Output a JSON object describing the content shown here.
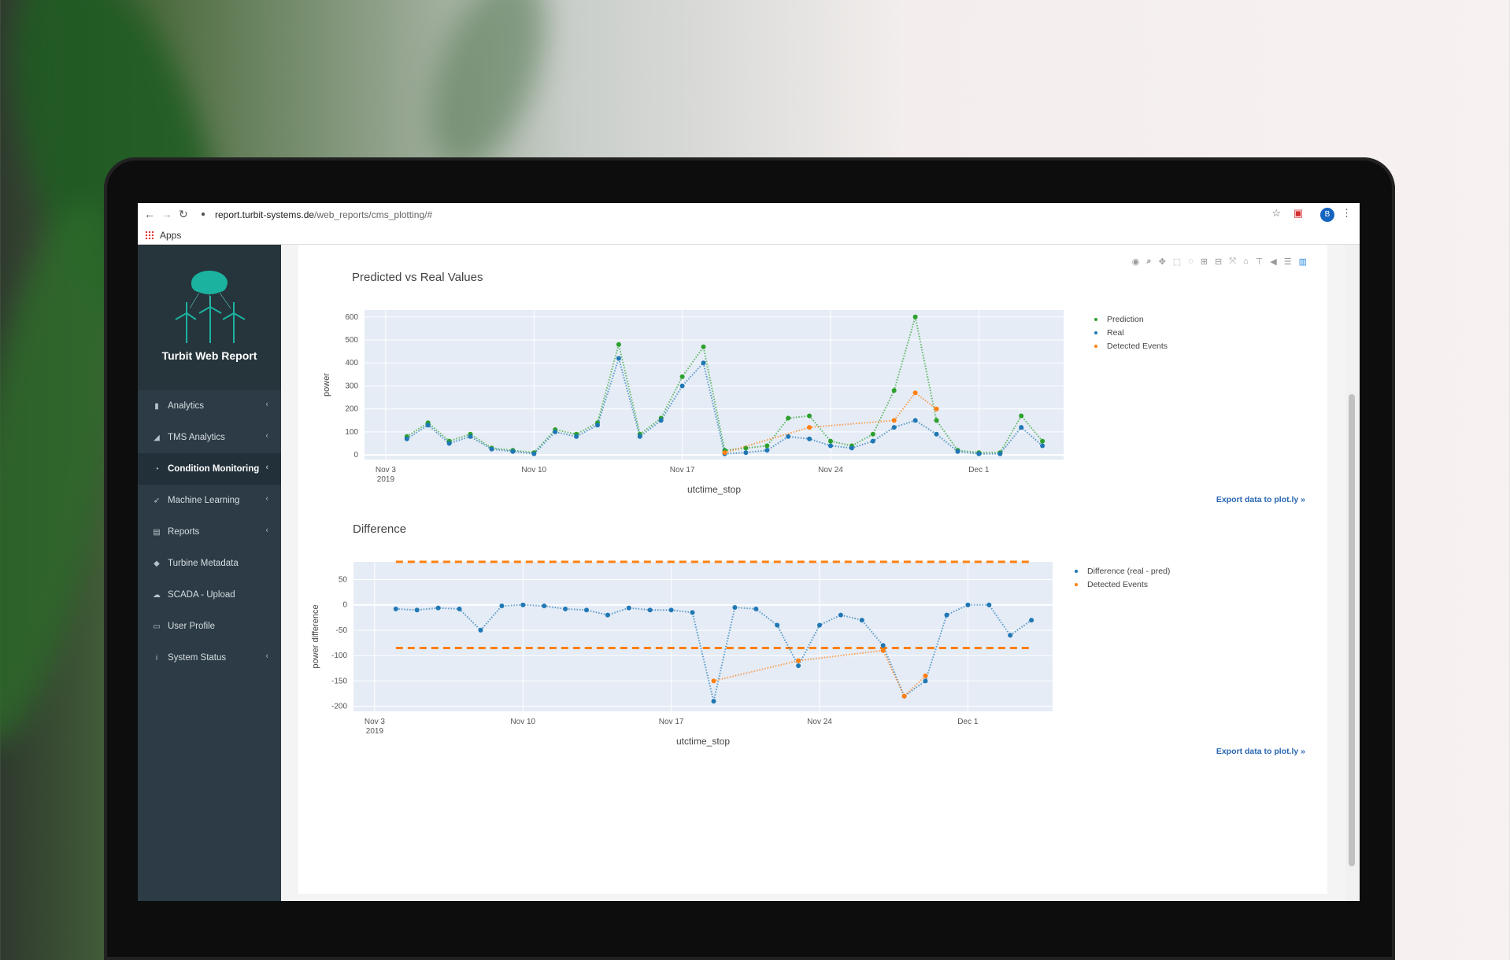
{
  "browser": {
    "url_host": "report.turbit-systems.de",
    "url_path": "/web_reports/cms_plotting/#",
    "apps_label": "Apps",
    "avatar_letter": "B"
  },
  "sidebar": {
    "brand_title": "Turbit Web Report",
    "items": [
      {
        "label": "Analytics",
        "icon": "bar-chart-icon",
        "glyph": "▮",
        "has_chevron": true,
        "active": false
      },
      {
        "label": "TMS Analytics",
        "icon": "area-chart-icon",
        "glyph": "◢",
        "has_chevron": true,
        "active": false
      },
      {
        "label": "Condition Monitoring",
        "icon": "dashboard-icon",
        "glyph": "◔",
        "has_chevron": true,
        "active": true
      },
      {
        "label": "Machine Learning",
        "icon": "rocket-icon",
        "glyph": "➶",
        "has_chevron": true,
        "active": false
      },
      {
        "label": "Reports",
        "icon": "file-icon",
        "glyph": "▤",
        "has_chevron": true,
        "active": false
      },
      {
        "label": "Turbine Metadata",
        "icon": "tags-icon",
        "glyph": "◆",
        "has_chevron": false,
        "active": false
      },
      {
        "label": "SCADA - Upload",
        "icon": "cloud-upload-icon",
        "glyph": "☁",
        "has_chevron": false,
        "active": false
      },
      {
        "label": "User Profile",
        "icon": "id-card-icon",
        "glyph": "▭",
        "has_chevron": false,
        "active": false
      },
      {
        "label": "System Status",
        "icon": "info-icon",
        "glyph": "i",
        "has_chevron": true,
        "active": false
      }
    ]
  },
  "modebar": {
    "icons": [
      "camera-icon",
      "zoom-icon",
      "pan-icon",
      "box-select-icon",
      "lasso-icon",
      "zoom-in-icon",
      "zoom-out-icon",
      "autoscale-icon",
      "reset-axes-icon",
      "spike-lines-icon",
      "hover-closest-icon",
      "hover-compare-icon",
      "plotly-logo-icon"
    ]
  },
  "colors": {
    "prediction": "#2ca02c",
    "real": "#1f77b4",
    "events": "#ff7f0e",
    "plot_bg": "#e5ecf6",
    "sidebar": "#2c3b45"
  },
  "chart_data": [
    {
      "type": "scatter",
      "title": "Predicted vs Real Values",
      "xlabel": "utctime_stop",
      "ylabel": "power",
      "x_ticks": [
        "Nov 3\n2019",
        "Nov 10",
        "Nov 17",
        "Nov 24",
        "Dec 1"
      ],
      "xlim": [
        "2019-11-02",
        "2019-12-05"
      ],
      "ylim": [
        -20,
        630
      ],
      "y_ticks": [
        0,
        100,
        200,
        300,
        400,
        500,
        600
      ],
      "legend_position": "top-right",
      "series": [
        {
          "name": "Prediction",
          "x": [
            "2019-11-04",
            "2019-11-05",
            "2019-11-06",
            "2019-11-07",
            "2019-11-08",
            "2019-11-09",
            "2019-11-10",
            "2019-11-11",
            "2019-11-12",
            "2019-11-13",
            "2019-11-14",
            "2019-11-15",
            "2019-11-16",
            "2019-11-17",
            "2019-11-18",
            "2019-11-19",
            "2019-11-20",
            "2019-11-21",
            "2019-11-22",
            "2019-11-23",
            "2019-11-24",
            "2019-11-25",
            "2019-11-26",
            "2019-11-27",
            "2019-11-28",
            "2019-11-29",
            "2019-11-30",
            "2019-12-01",
            "2019-12-02",
            "2019-12-03",
            "2019-12-04"
          ],
          "values": [
            80,
            140,
            60,
            90,
            30,
            20,
            10,
            110,
            90,
            140,
            480,
            90,
            160,
            340,
            470,
            20,
            30,
            40,
            160,
            170,
            60,
            40,
            90,
            280,
            600,
            150,
            20,
            10,
            10,
            170,
            60
          ]
        },
        {
          "name": "Real",
          "x": [
            "2019-11-04",
            "2019-11-05",
            "2019-11-06",
            "2019-11-07",
            "2019-11-08",
            "2019-11-09",
            "2019-11-10",
            "2019-11-11",
            "2019-11-12",
            "2019-11-13",
            "2019-11-14",
            "2019-11-15",
            "2019-11-16",
            "2019-11-17",
            "2019-11-18",
            "2019-11-19",
            "2019-11-20",
            "2019-11-21",
            "2019-11-22",
            "2019-11-23",
            "2019-11-24",
            "2019-11-25",
            "2019-11-26",
            "2019-11-27",
            "2019-11-28",
            "2019-11-29",
            "2019-11-30",
            "2019-12-01",
            "2019-12-02",
            "2019-12-03",
            "2019-12-04"
          ],
          "values": [
            70,
            130,
            50,
            80,
            25,
            15,
            5,
            100,
            80,
            130,
            420,
            80,
            150,
            300,
            400,
            5,
            10,
            20,
            80,
            70,
            40,
            30,
            60,
            120,
            150,
            90,
            15,
            5,
            5,
            120,
            40
          ]
        },
        {
          "name": "Detected Events",
          "x": [
            "2019-11-19",
            "2019-11-23",
            "2019-11-27",
            "2019-11-28",
            "2019-11-29"
          ],
          "values": [
            10,
            120,
            150,
            270,
            200
          ]
        }
      ]
    },
    {
      "type": "scatter",
      "title": "Difference",
      "xlabel": "utctime_stop",
      "ylabel": "power difference",
      "x_ticks": [
        "Nov 3\n2019",
        "Nov 10",
        "Nov 17",
        "Nov 24",
        "Dec 1"
      ],
      "xlim": [
        "2019-11-02",
        "2019-12-05"
      ],
      "ylim": [
        -210,
        85
      ],
      "y_ticks": [
        50,
        0,
        -50,
        -100,
        -150,
        -200
      ],
      "legend_position": "top-right",
      "thresholds": [
        85,
        -85
      ],
      "series": [
        {
          "name": "Difference (real - pred)",
          "x": [
            "2019-11-04",
            "2019-11-05",
            "2019-11-06",
            "2019-11-07",
            "2019-11-08",
            "2019-11-09",
            "2019-11-10",
            "2019-11-11",
            "2019-11-12",
            "2019-11-13",
            "2019-11-14",
            "2019-11-15",
            "2019-11-16",
            "2019-11-17",
            "2019-11-18",
            "2019-11-19",
            "2019-11-20",
            "2019-11-21",
            "2019-11-22",
            "2019-11-23",
            "2019-11-24",
            "2019-11-25",
            "2019-11-26",
            "2019-11-27",
            "2019-11-28",
            "2019-11-29",
            "2019-11-30",
            "2019-12-01",
            "2019-12-02",
            "2019-12-03",
            "2019-12-04"
          ],
          "values": [
            -8,
            -10,
            -6,
            -8,
            -50,
            -2,
            0,
            -2,
            -8,
            -10,
            -20,
            -6,
            -10,
            -10,
            -15,
            -190,
            -5,
            -8,
            -40,
            -120,
            -40,
            -20,
            -30,
            -80,
            -180,
            -150,
            -20,
            0,
            0,
            -60,
            -30
          ]
        },
        {
          "name": "Detected Events",
          "x": [
            "2019-11-19",
            "2019-11-23",
            "2019-11-27",
            "2019-11-28",
            "2019-11-29"
          ],
          "values": [
            -150,
            -110,
            -90,
            -180,
            -140
          ]
        }
      ]
    }
  ]
}
